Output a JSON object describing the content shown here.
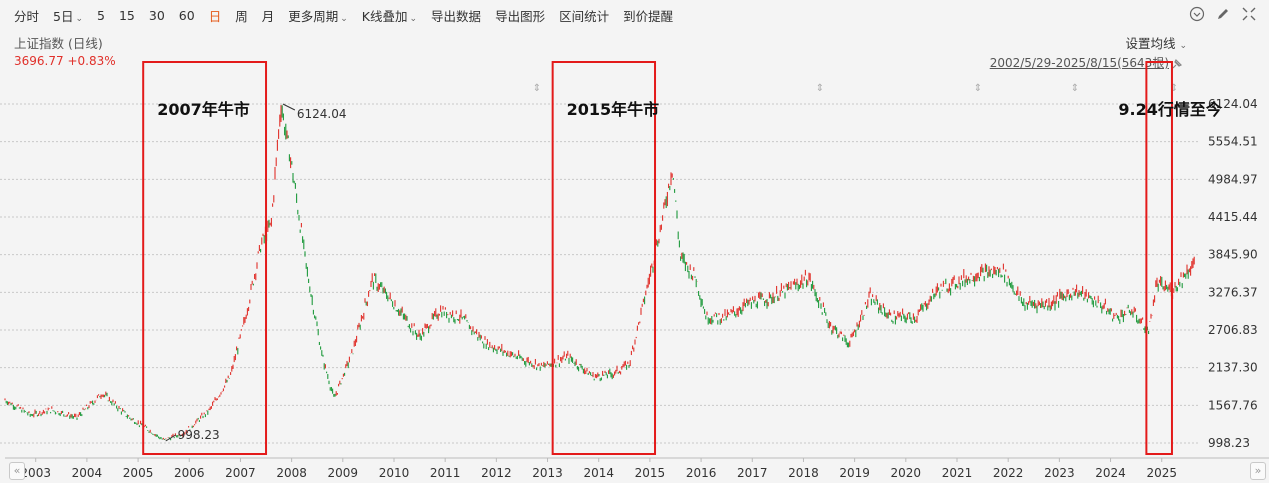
{
  "toolbar": {
    "items": [
      {
        "label": "分时",
        "caret": ""
      },
      {
        "label": "5日",
        "caret": "⌄"
      },
      {
        "label": "5",
        "caret": ""
      },
      {
        "label": "15",
        "caret": ""
      },
      {
        "label": "30",
        "caret": ""
      },
      {
        "label": "60",
        "caret": ""
      },
      {
        "label": "日",
        "caret": "",
        "active": true
      },
      {
        "label": "周",
        "caret": ""
      },
      {
        "label": "月",
        "caret": ""
      },
      {
        "label": "更多周期",
        "caret": "⌄"
      },
      {
        "label": "K线叠加",
        "caret": "⌄"
      },
      {
        "label": "导出数据",
        "caret": ""
      },
      {
        "label": "导出图形",
        "caret": ""
      },
      {
        "label": "区间统计",
        "caret": ""
      },
      {
        "label": "到价提醒",
        "caret": ""
      }
    ],
    "icons": [
      "chevron-circle-icon",
      "pencil-icon",
      "collapse-icon"
    ]
  },
  "index": {
    "name": "上证指数 (日线)",
    "price": "3696.77 +0.83%",
    "ma_setting": "设置均线",
    "range": "2002/5/29-2025/8/15(5643根)"
  },
  "colors": {
    "up": "#e0302a",
    "down": "#1e9a3c",
    "box": "#e31a1a",
    "grid": "#c8c8c8"
  },
  "chart_data": {
    "type": "line",
    "title": "",
    "x_labels": [
      "2003",
      "2004",
      "2005",
      "2006",
      "2007",
      "2008",
      "2009",
      "2010",
      "2011",
      "2012",
      "2013",
      "2014",
      "2015",
      "2016",
      "2017",
      "2018",
      "2019",
      "2020",
      "2021",
      "2022",
      "2023",
      "2024",
      "2025"
    ],
    "y_ticks": [
      "6124.04",
      "5554.51",
      "4984.97",
      "4415.44",
      "3845.90",
      "3276.37",
      "2706.83",
      "2137.30",
      "1567.76",
      "998.23"
    ],
    "ylim": [
      998.23,
      6124.04
    ],
    "series": [
      {
        "x": [
          2002.4,
          2002.9,
          2003.3,
          2003.8,
          2004.3,
          2004.8,
          2005.2,
          2005.5,
          2005.9,
          2006.4,
          2006.8,
          2007.1,
          2007.4,
          2007.6,
          2007.79,
          2008.0,
          2008.3,
          2008.6,
          2008.83,
          2009.2,
          2009.58,
          2009.9,
          2010.5,
          2010.9,
          2011.3,
          2011.8,
          2012.4,
          2012.9,
          2013.4,
          2013.9,
          2014.3,
          2014.6,
          2014.9,
          2015.2,
          2015.44,
          2015.6,
          2015.9,
          2016.1,
          2016.5,
          2016.9,
          2017.4,
          2017.9,
          2018.1,
          2018.5,
          2018.9,
          2019.3,
          2019.7,
          2020.2,
          2020.6,
          2020.9,
          2021.4,
          2021.9,
          2022.3,
          2022.8,
          2023.3,
          2023.8,
          2024.1,
          2024.4,
          2024.75,
          2024.9,
          2025.2,
          2025.6
        ],
        "y": [
          1650,
          1420,
          1500,
          1380,
          1750,
          1400,
          1200,
          1040,
          1150,
          1500,
          2000,
          2900,
          4000,
          4300,
          6124.04,
          5200,
          3600,
          2300,
          1664,
          2400,
          3478,
          3200,
          2600,
          3000,
          2900,
          2500,
          2300,
          2150,
          2300,
          2000,
          2050,
          2200,
          3200,
          4200,
          5178,
          3800,
          3500,
          2900,
          2900,
          3100,
          3200,
          3400,
          3500,
          2800,
          2500,
          3200,
          2900,
          2900,
          3300,
          3400,
          3550,
          3600,
          3100,
          3100,
          3300,
          3100,
          2900,
          3000,
          2700,
          3400,
          3300,
          3696.77
        ]
      }
    ],
    "annotations": [
      {
        "text": "6124.04",
        "x": 2007.79,
        "y": 6124.04
      },
      {
        "text": "998.23",
        "x": 2005.5,
        "y": 998.23
      }
    ],
    "highlight_boxes": [
      {
        "label": "2007年牛市",
        "from": 2005.1,
        "to": 2007.5
      },
      {
        "label": "2015年牛市",
        "from": 2013.1,
        "to": 2015.1
      },
      {
        "label": "9.24行情至今",
        "from": 2024.7,
        "to": 2025.2
      }
    ],
    "grid": true,
    "legend": "none"
  }
}
